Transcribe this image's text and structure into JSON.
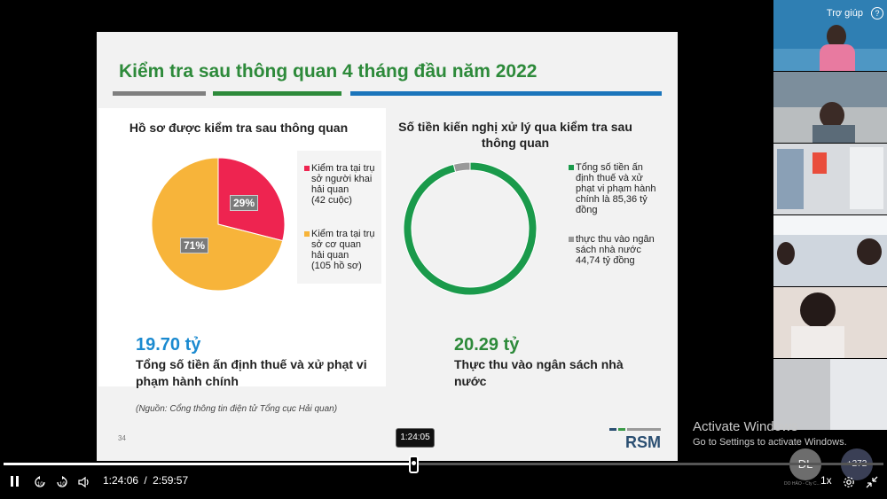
{
  "slide": {
    "title": "Kiểm tra sau thông quan 4 tháng đầu năm 2022",
    "title_bars": [
      "#7f7f7f",
      "#2d8a3a",
      "#1b75bb"
    ],
    "left": {
      "heading": "Hồ sơ được kiểm tra sau thông quan",
      "legend": [
        {
          "line1": "Kiểm tra tại trụ",
          "line2": "sở người khai",
          "line3": "hải quan",
          "line4": "(42 cuộc)",
          "color": "#ee2450"
        },
        {
          "line1": "Kiểm tra tại trụ",
          "line2": "sở cơ quan",
          "line3": "hải quan",
          "line4": "(105 hồ sơ)",
          "color": "#f7b43a"
        }
      ],
      "big_number": "19.70 tỷ",
      "desc_line1": "Tổng số tiền ấn định thuế và xử phạt vi",
      "desc_line2": "phạm hành chính"
    },
    "right": {
      "heading_line1": "Số tiền kiến nghị xử lý qua kiểm tra sau",
      "heading_line2": "thông quan",
      "legend": [
        {
          "line1": "Tổng số tiền ấn",
          "line2": "định thuế và xử",
          "line3": "phạt vi phạm hành",
          "line4": "chính là 85,36 tỷ",
          "line5": "đồng",
          "color": "#1a9a4b"
        },
        {
          "line1": "thực thu vào ngân",
          "line2": "sách nhà nước",
          "line3": "44,74 tỷ đồng",
          "color": "#999999"
        }
      ],
      "big_number": "20.29 tỷ",
      "desc_line1": "Thực thu vào ngân sách nhà",
      "desc_line2": "nước"
    },
    "source": "(Nguồn: Cổng thông tin điện tử Tổng cục Hải quan)",
    "page_number": "34",
    "logo_text": "RSM"
  },
  "chart_data": [
    {
      "type": "pie",
      "categories": [
        "Kiểm tra tại trụ sở người khai hải quan (42 cuộc)",
        "Kiểm tra tại trụ sở cơ quan hải quan (105 hồ sơ)"
      ],
      "values": [
        29,
        71
      ],
      "data_labels": [
        "29%",
        "71%"
      ],
      "colors": [
        "#ee2450",
        "#f7b43a"
      ],
      "title": "Hồ sơ được kiểm tra sau thông quan",
      "legend": "right"
    },
    {
      "type": "pie",
      "style": "donut",
      "categories": [
        "Tổng số tiền ấn định thuế và xử phạt vi phạm hành chính là 85,36 tỷ đồng",
        "thực thu vào ngân sách nhà nước 44,74 tỷ đồng"
      ],
      "values": [
        96,
        4
      ],
      "colors": [
        "#1a9a4b",
        "#999999"
      ],
      "title": "Số tiền kiến nghị xử lý qua kiểm tra sau thông quan",
      "legend": "right"
    }
  ],
  "gallery": {
    "help_label": "Trợ giúp",
    "help_icon": "question-circle-icon"
  },
  "watermark": {
    "line1": "Activate Windows",
    "line2": "Go to Settings to activate Windows."
  },
  "player": {
    "current_time": "1:24:06",
    "separator": "/",
    "total_time": "2:59:57",
    "hover_time": "1:24:05",
    "progress": 0.467,
    "speed": "1x",
    "avatar_initials": "DL",
    "participant_count": "+272",
    "avatar_caption": "DO HẢO - Cty C..."
  }
}
